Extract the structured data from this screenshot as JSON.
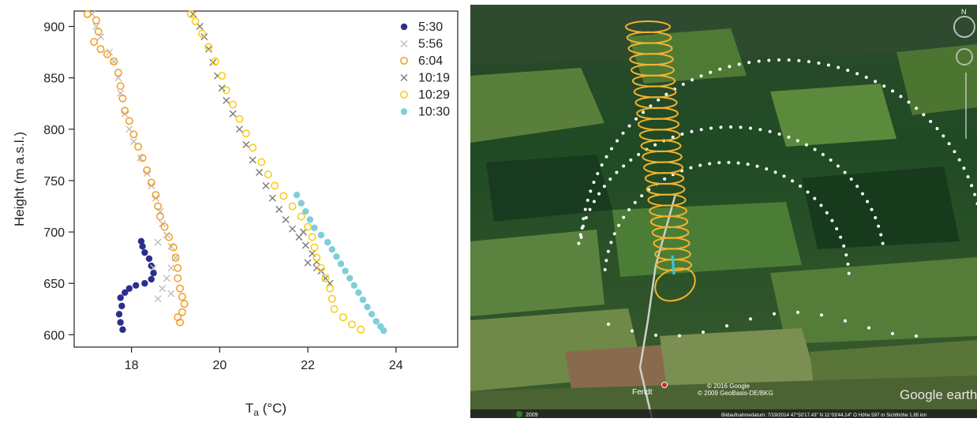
{
  "chart_data": {
    "type": "scatter",
    "xlabel_main": "T",
    "xlabel_sub": "a",
    "xlabel_unit": " (°C)",
    "ylabel": "Height (m a.s.l.)",
    "xlim": [
      16.7,
      25.4
    ],
    "ylim": [
      588,
      915
    ],
    "xticks": [
      18,
      20,
      22,
      24
    ],
    "yticks": [
      600,
      650,
      700,
      750,
      800,
      850,
      900
    ],
    "series": [
      {
        "name": "5:30",
        "color": "#2b2f8c",
        "marker": "filled-circle",
        "points": [
          [
            17.8,
            605
          ],
          [
            17.75,
            612
          ],
          [
            17.72,
            620
          ],
          [
            17.78,
            628
          ],
          [
            17.75,
            636
          ],
          [
            17.85,
            641
          ],
          [
            17.95,
            645
          ],
          [
            18.1,
            648
          ],
          [
            18.3,
            650
          ],
          [
            18.45,
            654
          ],
          [
            18.5,
            660
          ],
          [
            18.45,
            667
          ],
          [
            18.4,
            674
          ],
          [
            18.3,
            680
          ],
          [
            18.25,
            686
          ],
          [
            18.22,
            691
          ]
        ]
      },
      {
        "name": "5:56",
        "color": "#bdbdbd",
        "marker": "x",
        "points": [
          [
            17.1,
            912
          ],
          [
            17.2,
            900
          ],
          [
            17.3,
            890
          ],
          [
            17.5,
            875
          ],
          [
            17.6,
            866
          ],
          [
            17.7,
            850
          ],
          [
            17.75,
            835
          ],
          [
            17.85,
            815
          ],
          [
            17.95,
            800
          ],
          [
            18.05,
            788
          ],
          [
            18.2,
            772
          ],
          [
            18.35,
            757
          ],
          [
            18.45,
            745
          ],
          [
            18.55,
            733
          ],
          [
            18.65,
            720
          ],
          [
            18.7,
            708
          ],
          [
            18.8,
            697
          ],
          [
            18.9,
            686
          ],
          [
            19.0,
            675
          ],
          [
            18.9,
            665
          ],
          [
            18.8,
            655
          ],
          [
            18.7,
            645
          ],
          [
            18.6,
            635
          ],
          [
            18.9,
            640
          ],
          [
            18.6,
            690
          ],
          [
            18.5,
            665
          ]
        ]
      },
      {
        "name": "6:04",
        "color": "#f3a12b",
        "marker": "open-circle",
        "points": [
          [
            17.0,
            912
          ],
          [
            17.2,
            906
          ],
          [
            17.25,
            895
          ],
          [
            17.15,
            885
          ],
          [
            17.3,
            878
          ],
          [
            17.45,
            873
          ],
          [
            17.6,
            866
          ],
          [
            17.7,
            855
          ],
          [
            17.75,
            842
          ],
          [
            17.8,
            830
          ],
          [
            17.85,
            818
          ],
          [
            17.95,
            808
          ],
          [
            18.05,
            795
          ],
          [
            18.15,
            783
          ],
          [
            18.25,
            772
          ],
          [
            18.35,
            760
          ],
          [
            18.45,
            748
          ],
          [
            18.55,
            736
          ],
          [
            18.6,
            725
          ],
          [
            18.65,
            715
          ],
          [
            18.75,
            705
          ],
          [
            18.85,
            695
          ],
          [
            18.95,
            685
          ],
          [
            19.0,
            675
          ],
          [
            19.05,
            665
          ],
          [
            19.05,
            655
          ],
          [
            19.1,
            645
          ],
          [
            19.15,
            637
          ],
          [
            19.2,
            630
          ],
          [
            19.15,
            622
          ],
          [
            19.05,
            617
          ],
          [
            19.1,
            612
          ]
        ]
      },
      {
        "name": "10:19",
        "color": "#7a7a7a",
        "marker": "x",
        "points": [
          [
            19.4,
            912
          ],
          [
            19.55,
            900
          ],
          [
            19.65,
            890
          ],
          [
            19.75,
            878
          ],
          [
            19.85,
            865
          ],
          [
            19.95,
            852
          ],
          [
            20.05,
            840
          ],
          [
            20.15,
            828
          ],
          [
            20.3,
            815
          ],
          [
            20.45,
            800
          ],
          [
            20.6,
            785
          ],
          [
            20.75,
            770
          ],
          [
            20.9,
            758
          ],
          [
            21.05,
            745
          ],
          [
            21.2,
            733
          ],
          [
            21.35,
            722
          ],
          [
            21.5,
            712
          ],
          [
            21.65,
            703
          ],
          [
            21.8,
            695
          ],
          [
            21.95,
            687
          ],
          [
            22.1,
            679
          ],
          [
            22.2,
            671
          ],
          [
            22.3,
            662
          ],
          [
            22.4,
            655
          ],
          [
            22.2,
            665
          ],
          [
            21.9,
            700
          ],
          [
            22.0,
            670
          ],
          [
            22.5,
            650
          ]
        ]
      },
      {
        "name": "10:29",
        "color": "#f6cf1c",
        "marker": "open-circle",
        "points": [
          [
            19.35,
            912
          ],
          [
            19.45,
            905
          ],
          [
            19.6,
            893
          ],
          [
            19.75,
            880
          ],
          [
            19.9,
            866
          ],
          [
            20.05,
            852
          ],
          [
            20.15,
            838
          ],
          [
            20.3,
            824
          ],
          [
            20.45,
            810
          ],
          [
            20.6,
            796
          ],
          [
            20.75,
            782
          ],
          [
            20.95,
            768
          ],
          [
            21.1,
            756
          ],
          [
            21.25,
            745
          ],
          [
            21.45,
            735
          ],
          [
            21.65,
            725
          ],
          [
            21.85,
            715
          ],
          [
            22.0,
            705
          ],
          [
            22.1,
            695
          ],
          [
            22.15,
            685
          ],
          [
            22.2,
            675
          ],
          [
            22.3,
            665
          ],
          [
            22.4,
            655
          ],
          [
            22.5,
            645
          ],
          [
            22.55,
            635
          ],
          [
            22.6,
            625
          ],
          [
            22.8,
            617
          ],
          [
            23.0,
            610
          ],
          [
            23.2,
            605
          ]
        ]
      },
      {
        "name": "10:30",
        "color": "#7ecfd8",
        "marker": "filled-circle",
        "points": [
          [
            21.75,
            736
          ],
          [
            21.85,
            728
          ],
          [
            21.95,
            720
          ],
          [
            22.05,
            712
          ],
          [
            22.15,
            704
          ],
          [
            22.3,
            697
          ],
          [
            22.45,
            690
          ],
          [
            22.55,
            683
          ],
          [
            22.65,
            676
          ],
          [
            22.75,
            669
          ],
          [
            22.85,
            662
          ],
          [
            22.95,
            655
          ],
          [
            23.05,
            648
          ],
          [
            23.15,
            641
          ],
          [
            23.25,
            634
          ],
          [
            23.35,
            627
          ],
          [
            23.45,
            620
          ],
          [
            23.55,
            613
          ],
          [
            23.65,
            608
          ],
          [
            23.72,
            604
          ]
        ]
      }
    ]
  },
  "map_overlay": {
    "place_label": "Fendt",
    "copyright_lines": [
      "© 2016 Google",
      "© 2009 GeoBasis-DE/BKG"
    ],
    "brand_label": "Google earth",
    "year_label": "2009",
    "status_bar": "Bildaufnahmedatum: 7/19/2014    47°50'17.43\" N   11°03'44.14\" O   Höhe   597 m    Sichthöhe   1.85 km",
    "flight_path_color": "#f2b32e",
    "measurement_color": "#36c9d8",
    "footprint_color": "#ffffff"
  }
}
